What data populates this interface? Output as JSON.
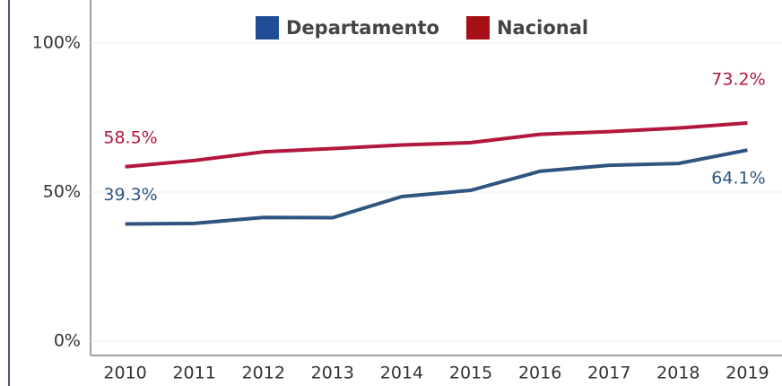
{
  "chart_data": {
    "type": "line",
    "categories": [
      "2010",
      "2011",
      "2012",
      "2013",
      "2014",
      "2015",
      "2016",
      "2017",
      "2018",
      "2019"
    ],
    "series": [
      {
        "name": "Departamento",
        "color": "#2e5580",
        "values": [
          39.3,
          39.5,
          41.5,
          41.4,
          48.5,
          50.6,
          57.0,
          59.0,
          59.6,
          64.1
        ],
        "value_labels": [
          "39.3%",
          null,
          null,
          null,
          null,
          null,
          null,
          null,
          null,
          "64.1%"
        ]
      },
      {
        "name": "Nacional",
        "color": "#b3173c",
        "values": [
          58.5,
          60.6,
          63.5,
          64.6,
          65.8,
          66.6,
          69.4,
          70.3,
          71.5,
          73.2
        ],
        "value_labels": [
          "58.5%",
          null,
          null,
          null,
          null,
          null,
          null,
          null,
          null,
          "73.2%"
        ]
      }
    ],
    "ylim": [
      0,
      100
    ],
    "yticks": [
      {
        "value": 0,
        "label": "0%"
      },
      {
        "value": 50,
        "label": "50%"
      },
      {
        "value": 100,
        "label": "100%"
      }
    ],
    "grid": true
  }
}
